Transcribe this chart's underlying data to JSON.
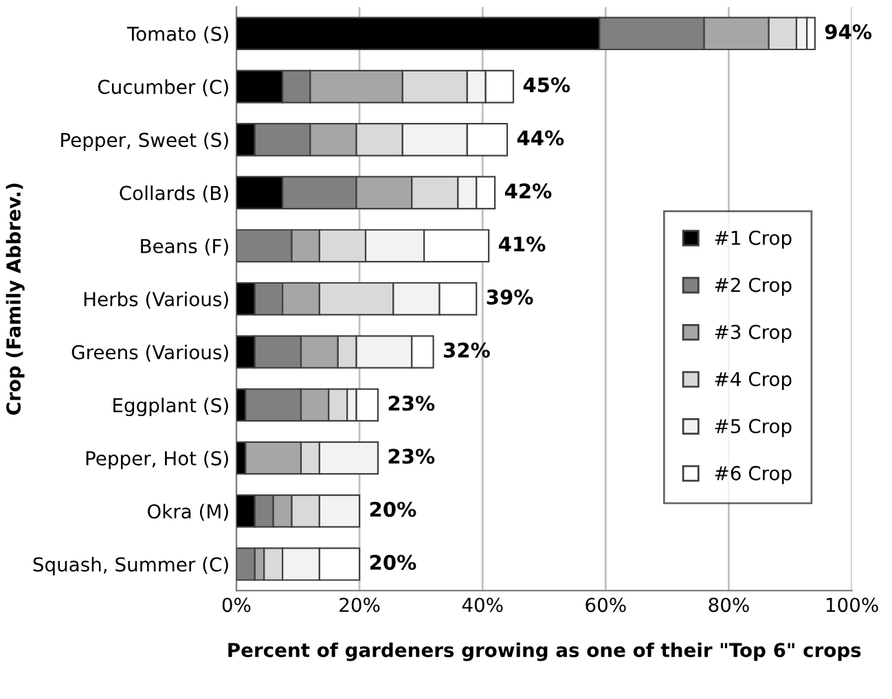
{
  "chart_data": {
    "type": "bar",
    "orientation": "horizontal",
    "stacked": true,
    "xlabel": "Percent of gardeners growing as one of their \"Top 6\" crops",
    "ylabel": "Crop (Family Abbrev.)",
    "categories": [
      "Tomato (S)",
      "Cucumber (C)",
      "Pepper, Sweet (S)",
      "Collards (B)",
      "Beans (F)",
      "Herbs (Various)",
      "Greens (Various)",
      "Eggplant (S)",
      "Pepper, Hot (S)",
      "Okra (M)",
      "Squash, Summer (C)"
    ],
    "series": [
      {
        "name": "#1 Crop",
        "color": "#000000",
        "values": [
          59,
          7.5,
          3,
          7.5,
          0,
          3,
          3,
          1.5,
          1.5,
          3,
          0
        ]
      },
      {
        "name": "#2 Crop",
        "color": "#808080",
        "values": [
          17,
          4.5,
          9,
          12,
          9,
          4.5,
          7.5,
          9,
          0,
          3,
          3
        ]
      },
      {
        "name": "#3 Crop",
        "color": "#a6a6a6",
        "values": [
          10.5,
          15,
          7.5,
          9,
          4.5,
          6,
          6,
          4.5,
          9,
          3,
          1.5
        ]
      },
      {
        "name": "#4 Crop",
        "color": "#d9d9d9",
        "values": [
          4.5,
          10.5,
          7.5,
          7.5,
          7.5,
          12,
          3,
          3,
          3,
          4.5,
          3
        ]
      },
      {
        "name": "#5 Crop",
        "color": "#f2f2f2",
        "values": [
          1.7,
          3,
          10.5,
          3,
          9.5,
          7.5,
          9,
          1.5,
          9.5,
          6.5,
          6
        ]
      },
      {
        "name": "#6 Crop",
        "color": "#ffffff",
        "values": [
          1.3,
          4.5,
          6.5,
          3,
          10.5,
          6,
          3.5,
          3.5,
          0,
          0,
          6.5
        ]
      }
    ],
    "totals": [
      "94%",
      "45%",
      "44%",
      "42%",
      "41%",
      "39%",
      "32%",
      "23%",
      "23%",
      "20%",
      "20%"
    ],
    "xlim": [
      0,
      100
    ],
    "xticks": [
      {
        "value": 0,
        "label": "0%"
      },
      {
        "value": 20,
        "label": "20%"
      },
      {
        "value": 40,
        "label": "40%"
      },
      {
        "value": 60,
        "label": "60%"
      },
      {
        "value": 80,
        "label": "80%"
      },
      {
        "value": 100,
        "label": "100%"
      }
    ],
    "grid": "x",
    "legend": "right"
  }
}
